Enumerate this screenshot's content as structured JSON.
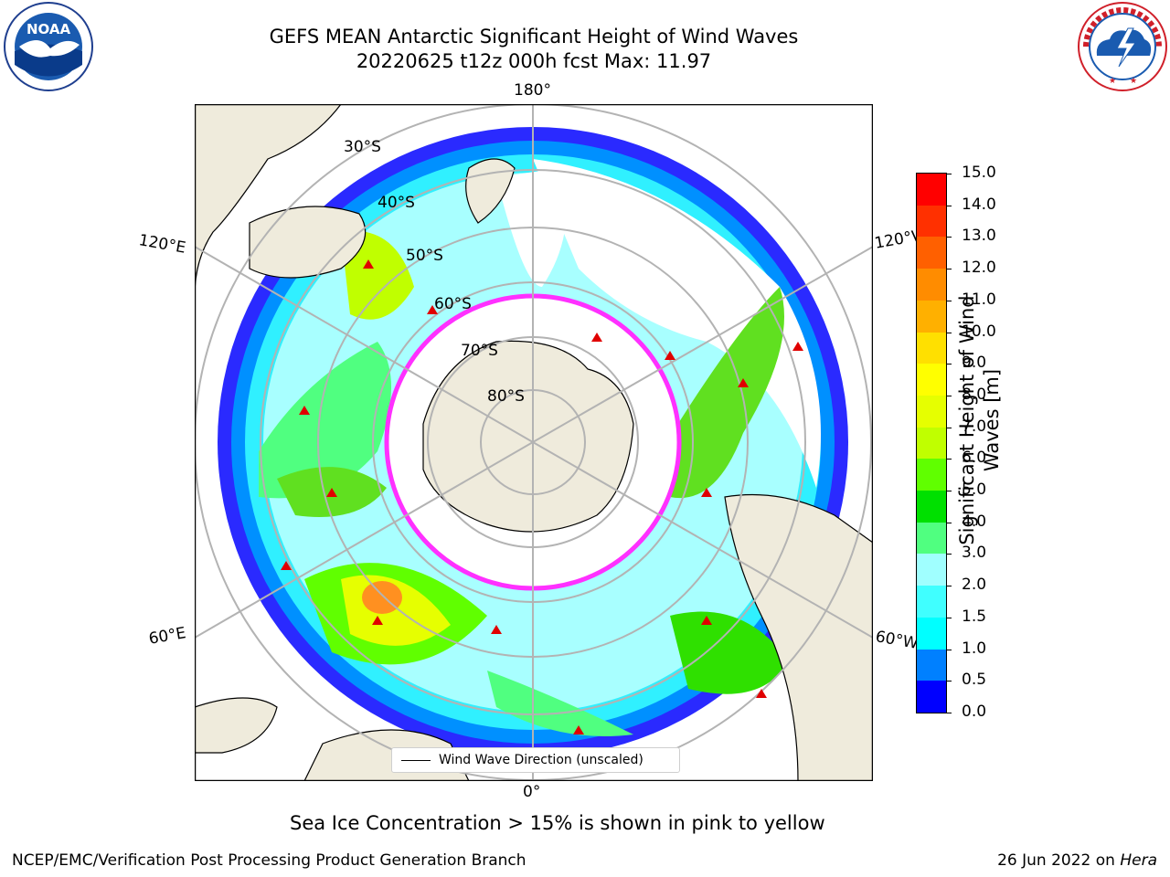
{
  "title": {
    "line1": "GEFS MEAN Antarctic Significant Height of Wind Waves",
    "line2": "20220625 t12z 000h fcst   Max: 11.97"
  },
  "logos": {
    "noaa_text": "NOAA",
    "noaa_ring_text": "NATIONAL OCEANIC AND ATMOSPHERIC ADMINISTRATION · U.S. DEPARTMENT OF COMMERCE",
    "nws_ring_text": "NATIONAL WEATHER SERVICE"
  },
  "map": {
    "longitude_labels": {
      "top": "180°",
      "bottom": "0°",
      "upper_left": "120°E",
      "upper_right": "120°W",
      "lower_left": "60°E",
      "lower_right": "60°W"
    },
    "latitude_labels": [
      "30°S",
      "40°S",
      "50°S",
      "60°S",
      "70°S",
      "80°S"
    ],
    "legend_label": "Wind Wave Direction (unscaled)"
  },
  "colorbar": {
    "label_line1": "Significant Height of Wind",
    "label_line2": "Waves [m]",
    "ticks": [
      "0.0",
      "0.5",
      "1.0",
      "1.5",
      "2.0",
      "3.0",
      "4.0",
      "5.0",
      "6.0",
      "7.0",
      "8.0",
      "9.0",
      "10.0",
      "11.0",
      "12.0",
      "13.0",
      "14.0",
      "15.0"
    ],
    "colors": [
      "#0000ff",
      "#0080ff",
      "#00ffff",
      "#40ffff",
      "#a0ffff",
      "#50ff80",
      "#00e000",
      "#60ff00",
      "#c0ff00",
      "#e6ff00",
      "#ffff00",
      "#ffe000",
      "#ffb000",
      "#ff8c00",
      "#ff6000",
      "#ff3000",
      "#ff0000"
    ]
  },
  "note": "Sea Ice Concentration > 15% is shown in pink to yellow",
  "footer": {
    "left": "NCEP/EMC/Verification Post Processing Product Generation Branch",
    "right_date": "26 Jun 2022 on ",
    "right_host": "Hera"
  }
}
